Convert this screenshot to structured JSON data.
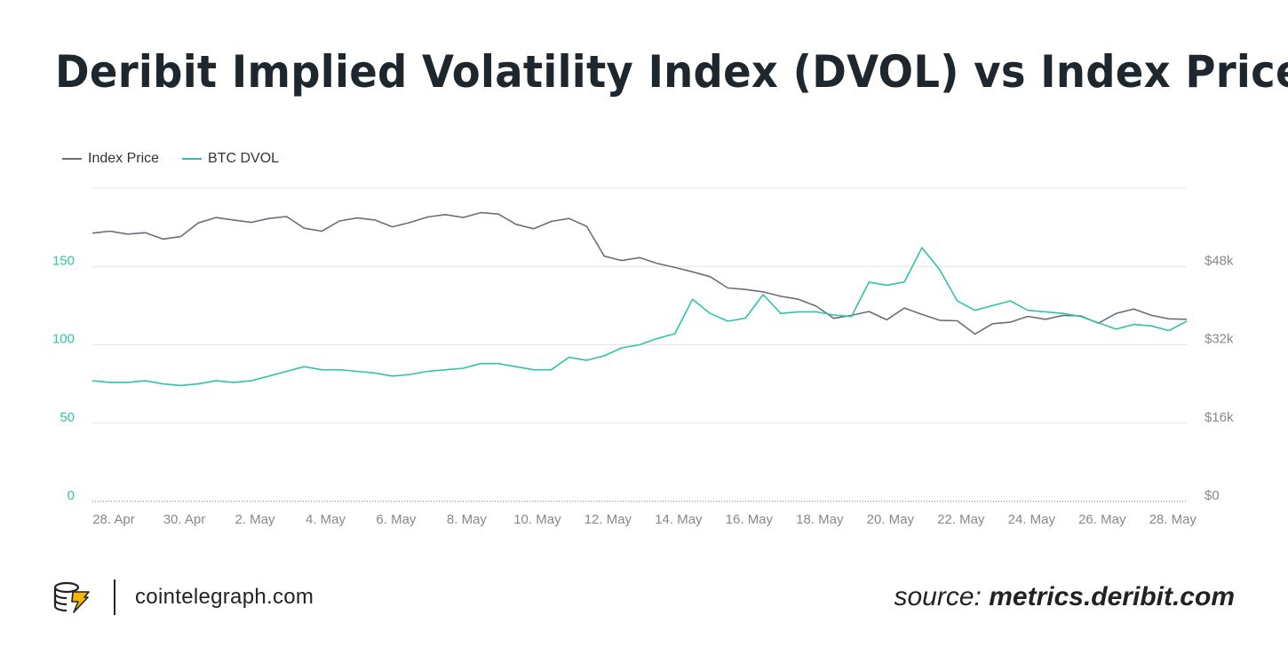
{
  "title": "Deribit Implied Volatility Index (DVOL) vs Index Price",
  "legend": {
    "index_price": "Index Price",
    "btc_dvol": "BTC DVOL"
  },
  "footer": {
    "site": "cointelegraph.com",
    "source_label": "source:",
    "source_site": "metrics.deribit.com"
  },
  "colors": {
    "index_price": "#6b6e78",
    "btc_dvol": "#2ec4a5",
    "left_axis": "#2ec4a5",
    "right_axis": "#888888"
  },
  "chart_data": {
    "type": "line",
    "x_tick_labels": [
      "28. Apr",
      "30. Apr",
      "2. May",
      "4. May",
      "6. May",
      "8. May",
      "10. May",
      "12. May",
      "14. May",
      "16. May",
      "18. May",
      "20. May",
      "22. May",
      "24. May",
      "26. May",
      "28. May"
    ],
    "x_range_days": [
      0,
      31
    ],
    "left_axis": {
      "label": "BTC DVOL",
      "ticks": [
        "0",
        "50",
        "100",
        "150"
      ],
      "tick_values": [
        0,
        50,
        100,
        150
      ],
      "range": [
        0,
        200
      ]
    },
    "right_axis": {
      "label": "Index Price",
      "ticks": [
        "$0",
        "$16k",
        "$32k",
        "$48k"
      ],
      "tick_values": [
        0,
        16000,
        32000,
        48000
      ],
      "range": [
        0,
        64000
      ]
    },
    "series": [
      {
        "name": "Index Price",
        "axis": "right",
        "x": [
          0,
          0.5,
          1,
          1.5,
          2,
          2.5,
          3,
          3.5,
          4,
          4.5,
          5,
          5.5,
          6,
          6.5,
          7,
          7.5,
          8,
          8.5,
          9,
          9.5,
          10,
          10.5,
          11,
          11.5,
          12,
          12.5,
          13,
          13.5,
          14,
          14.5,
          15,
          15.5,
          16,
          16.5,
          17,
          17.5,
          18,
          18.5,
          19,
          19.5,
          20,
          20.5,
          21,
          21.5,
          22,
          22.5,
          23,
          23.5,
          24,
          24.5,
          25,
          25.5,
          26,
          26.5,
          27,
          27.5,
          28,
          28.5,
          29,
          29.5,
          30,
          30.5,
          31
        ],
        "values": [
          54800,
          55200,
          54600,
          54900,
          53600,
          54100,
          56900,
          58000,
          57500,
          57000,
          57800,
          58200,
          55800,
          55200,
          57300,
          57900,
          57500,
          56100,
          57000,
          58100,
          58600,
          58000,
          59000,
          58700,
          56600,
          55700,
          57200,
          57800,
          56200,
          50100,
          49200,
          49800,
          48600,
          47800,
          46900,
          45900,
          43600,
          43300,
          42800,
          41900,
          41300,
          39900,
          37400,
          38000,
          38800,
          37100,
          39500,
          38200,
          37000,
          36900,
          34200,
          36300,
          36600,
          37800,
          37200,
          38000,
          37900,
          36400,
          38400,
          39300,
          38000,
          37300,
          37200
        ]
      },
      {
        "name": "BTC DVOL",
        "axis": "left",
        "x": [
          0,
          0.5,
          1,
          1.5,
          2,
          2.5,
          3,
          3.5,
          4,
          4.5,
          5,
          5.5,
          6,
          6.5,
          7,
          7.5,
          8,
          8.5,
          9,
          9.5,
          10,
          10.5,
          11,
          11.5,
          12,
          12.5,
          13,
          13.5,
          14,
          14.5,
          15,
          15.5,
          16,
          16.5,
          17,
          17.5,
          18,
          18.5,
          19,
          19.5,
          20,
          20.5,
          21,
          21.5,
          22,
          22.5,
          23,
          23.5,
          24,
          24.5,
          25,
          25.5,
          26,
          26.5,
          27,
          27.5,
          28,
          28.5,
          29,
          29.5,
          30,
          30.5,
          31
        ],
        "values": [
          77,
          76,
          76,
          77,
          75,
          74,
          75,
          77,
          76,
          77,
          80,
          83,
          86,
          84,
          84,
          83,
          82,
          80,
          81,
          83,
          84,
          85,
          88,
          88,
          86,
          84,
          84,
          92,
          90,
          93,
          98,
          100,
          104,
          107,
          129,
          120,
          115,
          117,
          132,
          120,
          121,
          121,
          119,
          118,
          140,
          138,
          140,
          162,
          148,
          128,
          122,
          125,
          128,
          122,
          121,
          120,
          118,
          114,
          110,
          113,
          112,
          109,
          115
        ]
      }
    ]
  }
}
